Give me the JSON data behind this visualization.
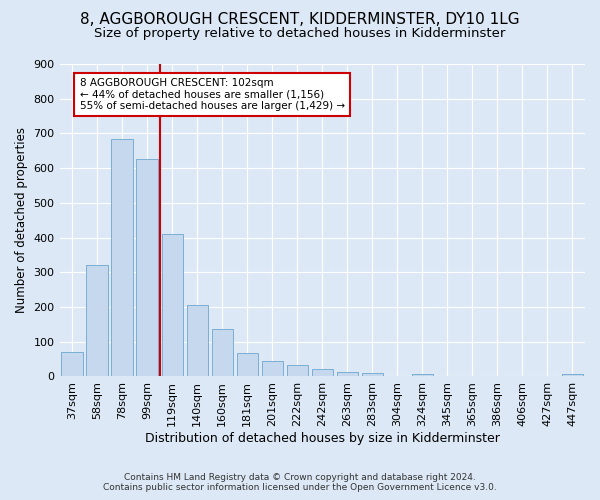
{
  "title": "8, AGGBOROUGH CRESCENT, KIDDERMINSTER, DY10 1LG",
  "subtitle": "Size of property relative to detached houses in Kidderminster",
  "xlabel": "Distribution of detached houses by size in Kidderminster",
  "ylabel": "Number of detached properties",
  "bar_labels": [
    "37sqm",
    "58sqm",
    "78sqm",
    "99sqm",
    "119sqm",
    "140sqm",
    "160sqm",
    "181sqm",
    "201sqm",
    "222sqm",
    "242sqm",
    "263sqm",
    "283sqm",
    "304sqm",
    "324sqm",
    "345sqm",
    "365sqm",
    "386sqm",
    "406sqm",
    "427sqm",
    "447sqm"
  ],
  "bar_values": [
    70,
    320,
    685,
    625,
    410,
    207,
    137,
    68,
    45,
    32,
    22,
    12,
    10,
    0,
    7,
    0,
    0,
    0,
    0,
    0,
    7
  ],
  "bar_color": "#c5d8ee",
  "bar_edgecolor": "#7aaed4",
  "vline_color": "#cc0000",
  "annotation_text": "8 AGGBOROUGH CRESCENT: 102sqm\n← 44% of detached houses are smaller (1,156)\n55% of semi-detached houses are larger (1,429) →",
  "annotation_box_color": "#ffffff",
  "annotation_box_edgecolor": "#cc0000",
  "ylim": [
    0,
    900
  ],
  "yticks": [
    0,
    100,
    200,
    300,
    400,
    500,
    600,
    700,
    800,
    900
  ],
  "footer": "Contains HM Land Registry data © Crown copyright and database right 2024.\nContains public sector information licensed under the Open Government Licence v3.0.",
  "title_fontsize": 11,
  "subtitle_fontsize": 9.5,
  "xlabel_fontsize": 9,
  "ylabel_fontsize": 8.5,
  "tick_fontsize": 8,
  "background_color": "#dce8f5",
  "plot_background": "#dce8f5"
}
